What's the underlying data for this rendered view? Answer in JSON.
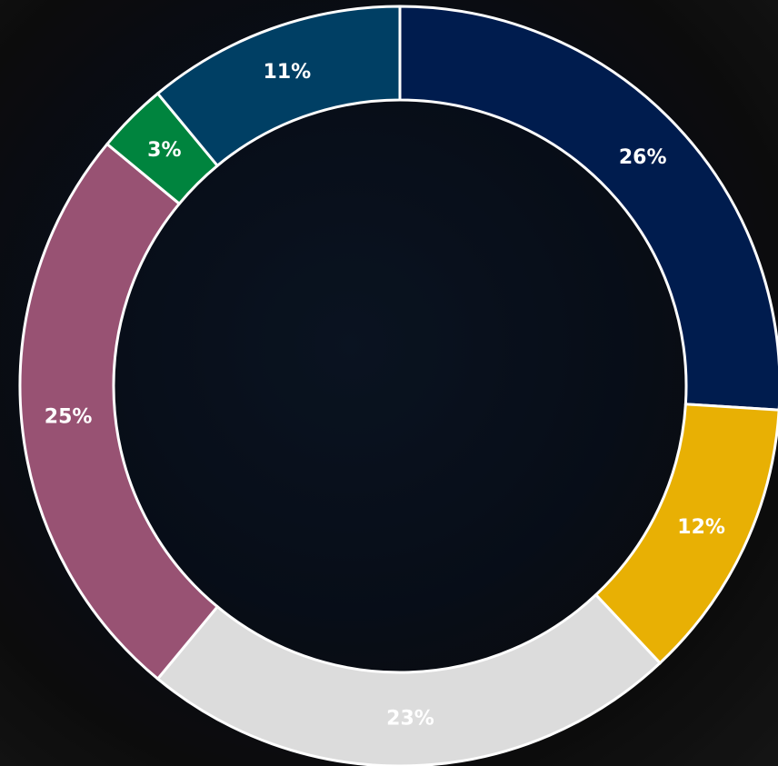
{
  "chart_data": {
    "type": "pie",
    "values": [
      26,
      12,
      23,
      25,
      3,
      11
    ],
    "value_labels": [
      "26%",
      "12%",
      "23%",
      "25%",
      "3%",
      "11%"
    ],
    "colors": [
      "#001c4e",
      "#e8b004",
      "#dcdcdc",
      "#985273",
      "#00843e",
      "#003f64"
    ]
  }
}
